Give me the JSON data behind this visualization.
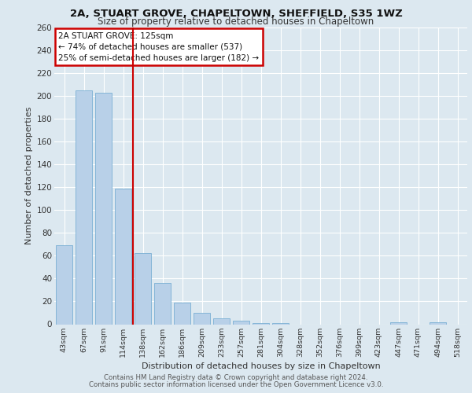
{
  "title1": "2A, STUART GROVE, CHAPELTOWN, SHEFFIELD, S35 1WZ",
  "title2": "Size of property relative to detached houses in Chapeltown",
  "xlabel": "Distribution of detached houses by size in Chapeltown",
  "ylabel": "Number of detached properties",
  "categories": [
    "43sqm",
    "67sqm",
    "91sqm",
    "114sqm",
    "138sqm",
    "162sqm",
    "186sqm",
    "209sqm",
    "233sqm",
    "257sqm",
    "281sqm",
    "304sqm",
    "328sqm",
    "352sqm",
    "376sqm",
    "399sqm",
    "423sqm",
    "447sqm",
    "471sqm",
    "494sqm",
    "518sqm"
  ],
  "values": [
    69,
    205,
    203,
    119,
    62,
    36,
    19,
    10,
    5,
    3,
    1,
    1,
    0,
    0,
    0,
    0,
    0,
    2,
    0,
    2,
    0
  ],
  "bar_color": "#b8d0e8",
  "bar_edge_color": "#7aafd4",
  "vline_x": 3.5,
  "vline_color": "#cc0000",
  "annotation_title": "2A STUART GROVE: 125sqm",
  "annotation_line1": "← 74% of detached houses are smaller (537)",
  "annotation_line2": "25% of semi-detached houses are larger (182) →",
  "annotation_box_color": "#cc0000",
  "annotation_bg": "#ffffff",
  "ylim": [
    0,
    260
  ],
  "yticks": [
    0,
    20,
    40,
    60,
    80,
    100,
    120,
    140,
    160,
    180,
    200,
    220,
    240,
    260
  ],
  "footer1": "Contains HM Land Registry data © Crown copyright and database right 2024.",
  "footer2": "Contains public sector information licensed under the Open Government Licence v3.0.",
  "fig_bg_color": "#dce8f0",
  "plot_bg_color": "#dce8f0"
}
